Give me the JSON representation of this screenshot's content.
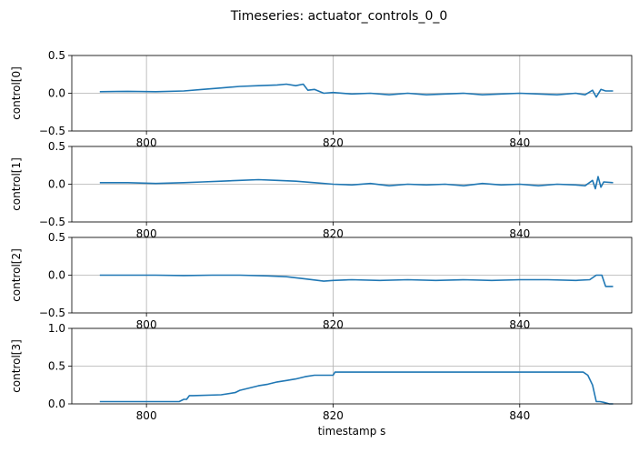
{
  "figure": {
    "title": "Timeseries: actuator_controls_0_0",
    "line_color": "#1f77b4",
    "grid_color": "#b0b0b0"
  },
  "chart_data": [
    {
      "type": "line",
      "ylabel": "control[0]",
      "xlabel": "",
      "xlim": [
        792,
        852
      ],
      "ylim": [
        -0.5,
        0.5
      ],
      "xticks": [
        800,
        820,
        840
      ],
      "xtick_labels": [
        "800",
        "820",
        "840"
      ],
      "yticks": [
        -0.5,
        0.0,
        0.5
      ],
      "ytick_labels": [
        "−0.5",
        "0.0",
        "0.5"
      ],
      "grid": true,
      "series": [
        {
          "x": [
            795,
            798,
            801,
            804,
            806,
            808,
            810,
            812,
            814,
            815,
            816,
            816.8,
            817.3,
            818,
            819,
            820,
            822,
            824,
            826,
            828,
            830,
            832,
            834,
            836,
            838,
            840,
            842,
            844,
            846,
            847,
            847.8,
            848.2,
            848.7,
            849.2,
            850
          ],
          "y": [
            0.02,
            0.025,
            0.02,
            0.03,
            0.05,
            0.07,
            0.09,
            0.1,
            0.11,
            0.12,
            0.1,
            0.12,
            0.04,
            0.05,
            0.0,
            0.01,
            -0.01,
            0.0,
            -0.02,
            0.0,
            -0.02,
            -0.01,
            0.0,
            -0.02,
            -0.01,
            0.0,
            -0.01,
            -0.02,
            0.0,
            -0.02,
            0.04,
            -0.05,
            0.05,
            0.03,
            0.03
          ]
        }
      ]
    },
    {
      "type": "line",
      "ylabel": "control[1]",
      "xlabel": "",
      "xlim": [
        792,
        852
      ],
      "ylim": [
        -0.5,
        0.5
      ],
      "xticks": [
        800,
        820,
        840
      ],
      "xtick_labels": [
        "800",
        "820",
        "840"
      ],
      "yticks": [
        -0.5,
        0.0,
        0.5
      ],
      "ytick_labels": [
        "−0.5",
        "0.0",
        "0.5"
      ],
      "grid": true,
      "series": [
        {
          "x": [
            795,
            798,
            801,
            804,
            806,
            808,
            810,
            812,
            814,
            816,
            818,
            820,
            822,
            824,
            826,
            828,
            830,
            832,
            834,
            836,
            838,
            840,
            842,
            844,
            846,
            847,
            847.8,
            848.1,
            848.4,
            848.7,
            849,
            850
          ],
          "y": [
            0.02,
            0.02,
            0.01,
            0.02,
            0.03,
            0.04,
            0.05,
            0.06,
            0.05,
            0.04,
            0.02,
            0.0,
            -0.01,
            0.01,
            -0.02,
            0.0,
            -0.01,
            0.0,
            -0.02,
            0.01,
            -0.01,
            0.0,
            -0.02,
            0.0,
            -0.01,
            -0.02,
            0.05,
            -0.06,
            0.1,
            -0.04,
            0.03,
            0.02
          ]
        }
      ]
    },
    {
      "type": "line",
      "ylabel": "control[2]",
      "xlabel": "",
      "xlim": [
        792,
        852
      ],
      "ylim": [
        -0.5,
        0.5
      ],
      "xticks": [
        800,
        820,
        840
      ],
      "xtick_labels": [
        "800",
        "820",
        "840"
      ],
      "yticks": [
        -0.5,
        0.0,
        0.5
      ],
      "ytick_labels": [
        "−0.5",
        "0.0",
        "0.5"
      ],
      "grid": true,
      "series": [
        {
          "x": [
            795,
            798,
            801,
            804,
            807,
            810,
            813,
            815,
            817,
            819,
            820,
            822,
            825,
            828,
            831,
            834,
            837,
            840,
            843,
            846,
            847.5,
            848.2,
            848.8,
            849.2,
            849.6,
            850
          ],
          "y": [
            0.0,
            0.0,
            0.0,
            -0.005,
            0.0,
            0.0,
            -0.01,
            -0.02,
            -0.05,
            -0.08,
            -0.07,
            -0.06,
            -0.07,
            -0.06,
            -0.07,
            -0.06,
            -0.07,
            -0.06,
            -0.06,
            -0.07,
            -0.06,
            0.0,
            0.0,
            -0.15,
            -0.15,
            -0.15
          ]
        }
      ]
    },
    {
      "type": "line",
      "ylabel": "control[3]",
      "xlabel": "timestamp s",
      "xlim": [
        792,
        852
      ],
      "ylim": [
        0.0,
        1.0
      ],
      "xticks": [
        800,
        820,
        840
      ],
      "xtick_labels": [
        "800",
        "820",
        "840"
      ],
      "yticks": [
        0.0,
        0.5,
        1.0
      ],
      "ytick_labels": [
        "0.0",
        "0.5",
        "1.0"
      ],
      "grid": true,
      "series": [
        {
          "x": [
            795,
            803.5,
            804,
            804.3,
            804.6,
            805,
            808,
            809.5,
            810,
            811,
            812,
            813,
            814,
            815,
            816,
            817,
            818,
            820,
            820.2,
            825,
            830,
            835,
            840,
            845,
            846.8,
            847.3,
            847.8,
            848.2,
            848.6,
            849,
            849.6,
            850
          ],
          "y": [
            0.03,
            0.03,
            0.06,
            0.06,
            0.11,
            0.11,
            0.12,
            0.15,
            0.18,
            0.21,
            0.24,
            0.26,
            0.29,
            0.31,
            0.33,
            0.36,
            0.38,
            0.38,
            0.42,
            0.42,
            0.42,
            0.42,
            0.42,
            0.42,
            0.42,
            0.38,
            0.25,
            0.03,
            0.03,
            0.02,
            0.0,
            0.0
          ]
        }
      ]
    }
  ]
}
